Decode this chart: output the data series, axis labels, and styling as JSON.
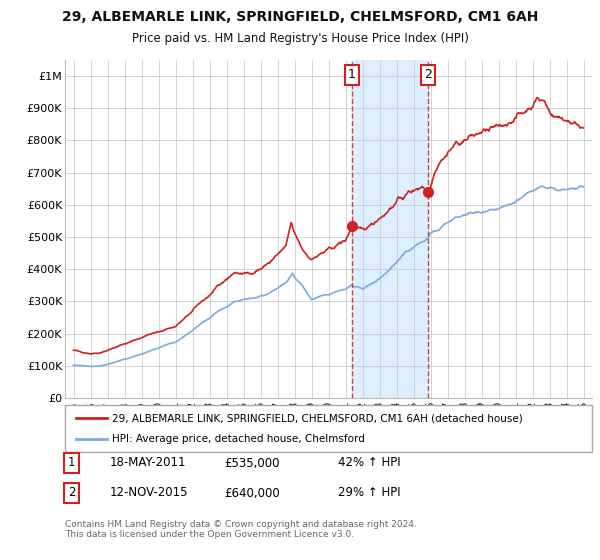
{
  "title": "29, ALBEMARLE LINK, SPRINGFIELD, CHELMSFORD, CM1 6AH",
  "subtitle": "Price paid vs. HM Land Registry's House Price Index (HPI)",
  "ylim": [
    0,
    1050000
  ],
  "yticks": [
    0,
    100000,
    200000,
    300000,
    400000,
    500000,
    600000,
    700000,
    800000,
    900000,
    1000000
  ],
  "ytick_labels": [
    "£0",
    "£100K",
    "£200K",
    "£300K",
    "£400K",
    "£500K",
    "£600K",
    "£700K",
    "£800K",
    "£900K",
    "£1M"
  ],
  "xlim_start": 1994.5,
  "xlim_end": 2025.5,
  "sale1_x": 2011.38,
  "sale1_y": 535000,
  "sale2_x": 2015.87,
  "sale2_y": 640000,
  "vline1_x": 2011.38,
  "vline2_x": 2015.87,
  "red_line_color": "#cc2222",
  "blue_line_color": "#7aabdc",
  "vline_color": "#cc2222",
  "shade_color": "#ddeeff",
  "grid_color": "#cccccc",
  "background_color": "#ffffff",
  "legend_line1": "29, ALBEMARLE LINK, SPRINGFIELD, CHELMSFORD, CM1 6AH (detached house)",
  "legend_line2": "HPI: Average price, detached house, Chelmsford",
  "annotation1_date": "18-MAY-2011",
  "annotation1_price": "£535,000",
  "annotation1_hpi": "42% ↑ HPI",
  "annotation2_date": "12-NOV-2015",
  "annotation2_price": "£640,000",
  "annotation2_hpi": "29% ↑ HPI",
  "footer": "Contains HM Land Registry data © Crown copyright and database right 2024.\nThis data is licensed under the Open Government Licence v3.0.",
  "xtick_years": [
    1995,
    1996,
    1997,
    1998,
    1999,
    2000,
    2001,
    2002,
    2003,
    2004,
    2005,
    2006,
    2007,
    2008,
    2009,
    2010,
    2011,
    2012,
    2013,
    2014,
    2015,
    2016,
    2017,
    2018,
    2019,
    2020,
    2021,
    2022,
    2023,
    2024,
    2025
  ]
}
